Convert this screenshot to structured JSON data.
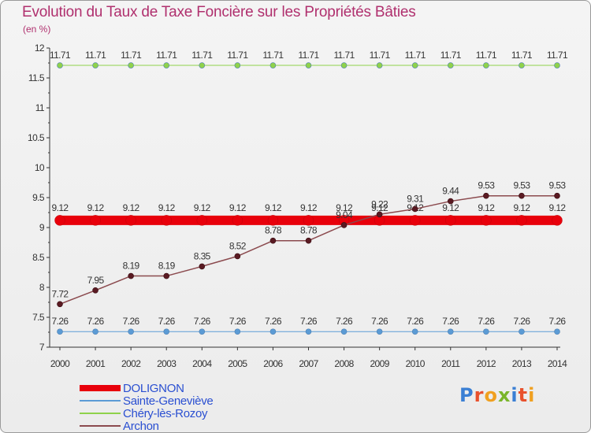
{
  "title": "Evolution du Taux de Taxe Foncière sur les Propriétés Bâties",
  "unit_label": "(en %)",
  "logo_text": "Proxiti",
  "chart_data": {
    "type": "line",
    "title": "Evolution du Taux de Taxe Foncière sur les Propriétés Bâties",
    "ylabel": "(en %)",
    "xlabel": "",
    "x": [
      "2000",
      "2001",
      "2002",
      "2003",
      "2004",
      "2005",
      "2006",
      "2007",
      "2008",
      "2009",
      "2010",
      "2011",
      "2012",
      "2013",
      "2014"
    ],
    "ylim": [
      7,
      12
    ],
    "yticks": [
      "7",
      "7.5",
      "8",
      "8.5",
      "9",
      "9.5",
      "10",
      "10.5",
      "11",
      "11.5",
      "12"
    ],
    "grid": false,
    "legend_position": "bottom-left",
    "series": [
      {
        "name": "DOLIGNON",
        "color": "#e8000b",
        "values": [
          9.12,
          9.12,
          9.12,
          9.12,
          9.12,
          9.12,
          9.12,
          9.12,
          9.12,
          9.12,
          9.12,
          9.12,
          9.12,
          9.12,
          9.12
        ],
        "labels": [
          "9.12",
          "9.12",
          "9.12",
          "9.12",
          "9.12",
          "9.12",
          "9.12",
          "9.12",
          "9.12",
          "9.12",
          "9.12",
          "9.12",
          "9.12",
          "9.12",
          "9.12"
        ]
      },
      {
        "name": "Sainte-Geneviève",
        "color": "#5b9bd5",
        "values": [
          7.26,
          7.26,
          7.26,
          7.26,
          7.26,
          7.26,
          7.26,
          7.26,
          7.26,
          7.26,
          7.26,
          7.26,
          7.26,
          7.26,
          7.26
        ],
        "labels": [
          "7.26",
          "7.26",
          "7.26",
          "7.26",
          "7.26",
          "7.26",
          "7.26",
          "7.26",
          "7.26",
          "7.26",
          "7.26",
          "7.26",
          "7.26",
          "7.26",
          "7.26"
        ]
      },
      {
        "name": "Chéry-lès-Rozoy",
        "color": "#8fd24b",
        "values": [
          11.71,
          11.71,
          11.71,
          11.71,
          11.71,
          11.71,
          11.71,
          11.71,
          11.71,
          11.71,
          11.71,
          11.71,
          11.71,
          11.71,
          11.71
        ],
        "labels": [
          "11.71",
          "11.71",
          "11.71",
          "11.71",
          "11.71",
          "11.71",
          "11.71",
          "11.71",
          "11.71",
          "11.71",
          "11.71",
          "11.71",
          "11.71",
          "11.71",
          "11.71"
        ]
      },
      {
        "name": "Archon",
        "color": "#8b4a4e",
        "values": [
          7.72,
          7.95,
          8.19,
          8.19,
          8.35,
          8.52,
          8.78,
          8.78,
          9.04,
          9.22,
          9.31,
          9.44,
          9.53,
          9.53,
          9.53
        ],
        "labels": [
          "7.72",
          "7.95",
          "8.19",
          "8.19",
          "8.35",
          "8.52",
          "8.78",
          "8.78",
          "9.04",
          "9.22",
          "9.31",
          "9.44",
          "9.53",
          "9.53",
          "9.53"
        ]
      }
    ]
  }
}
